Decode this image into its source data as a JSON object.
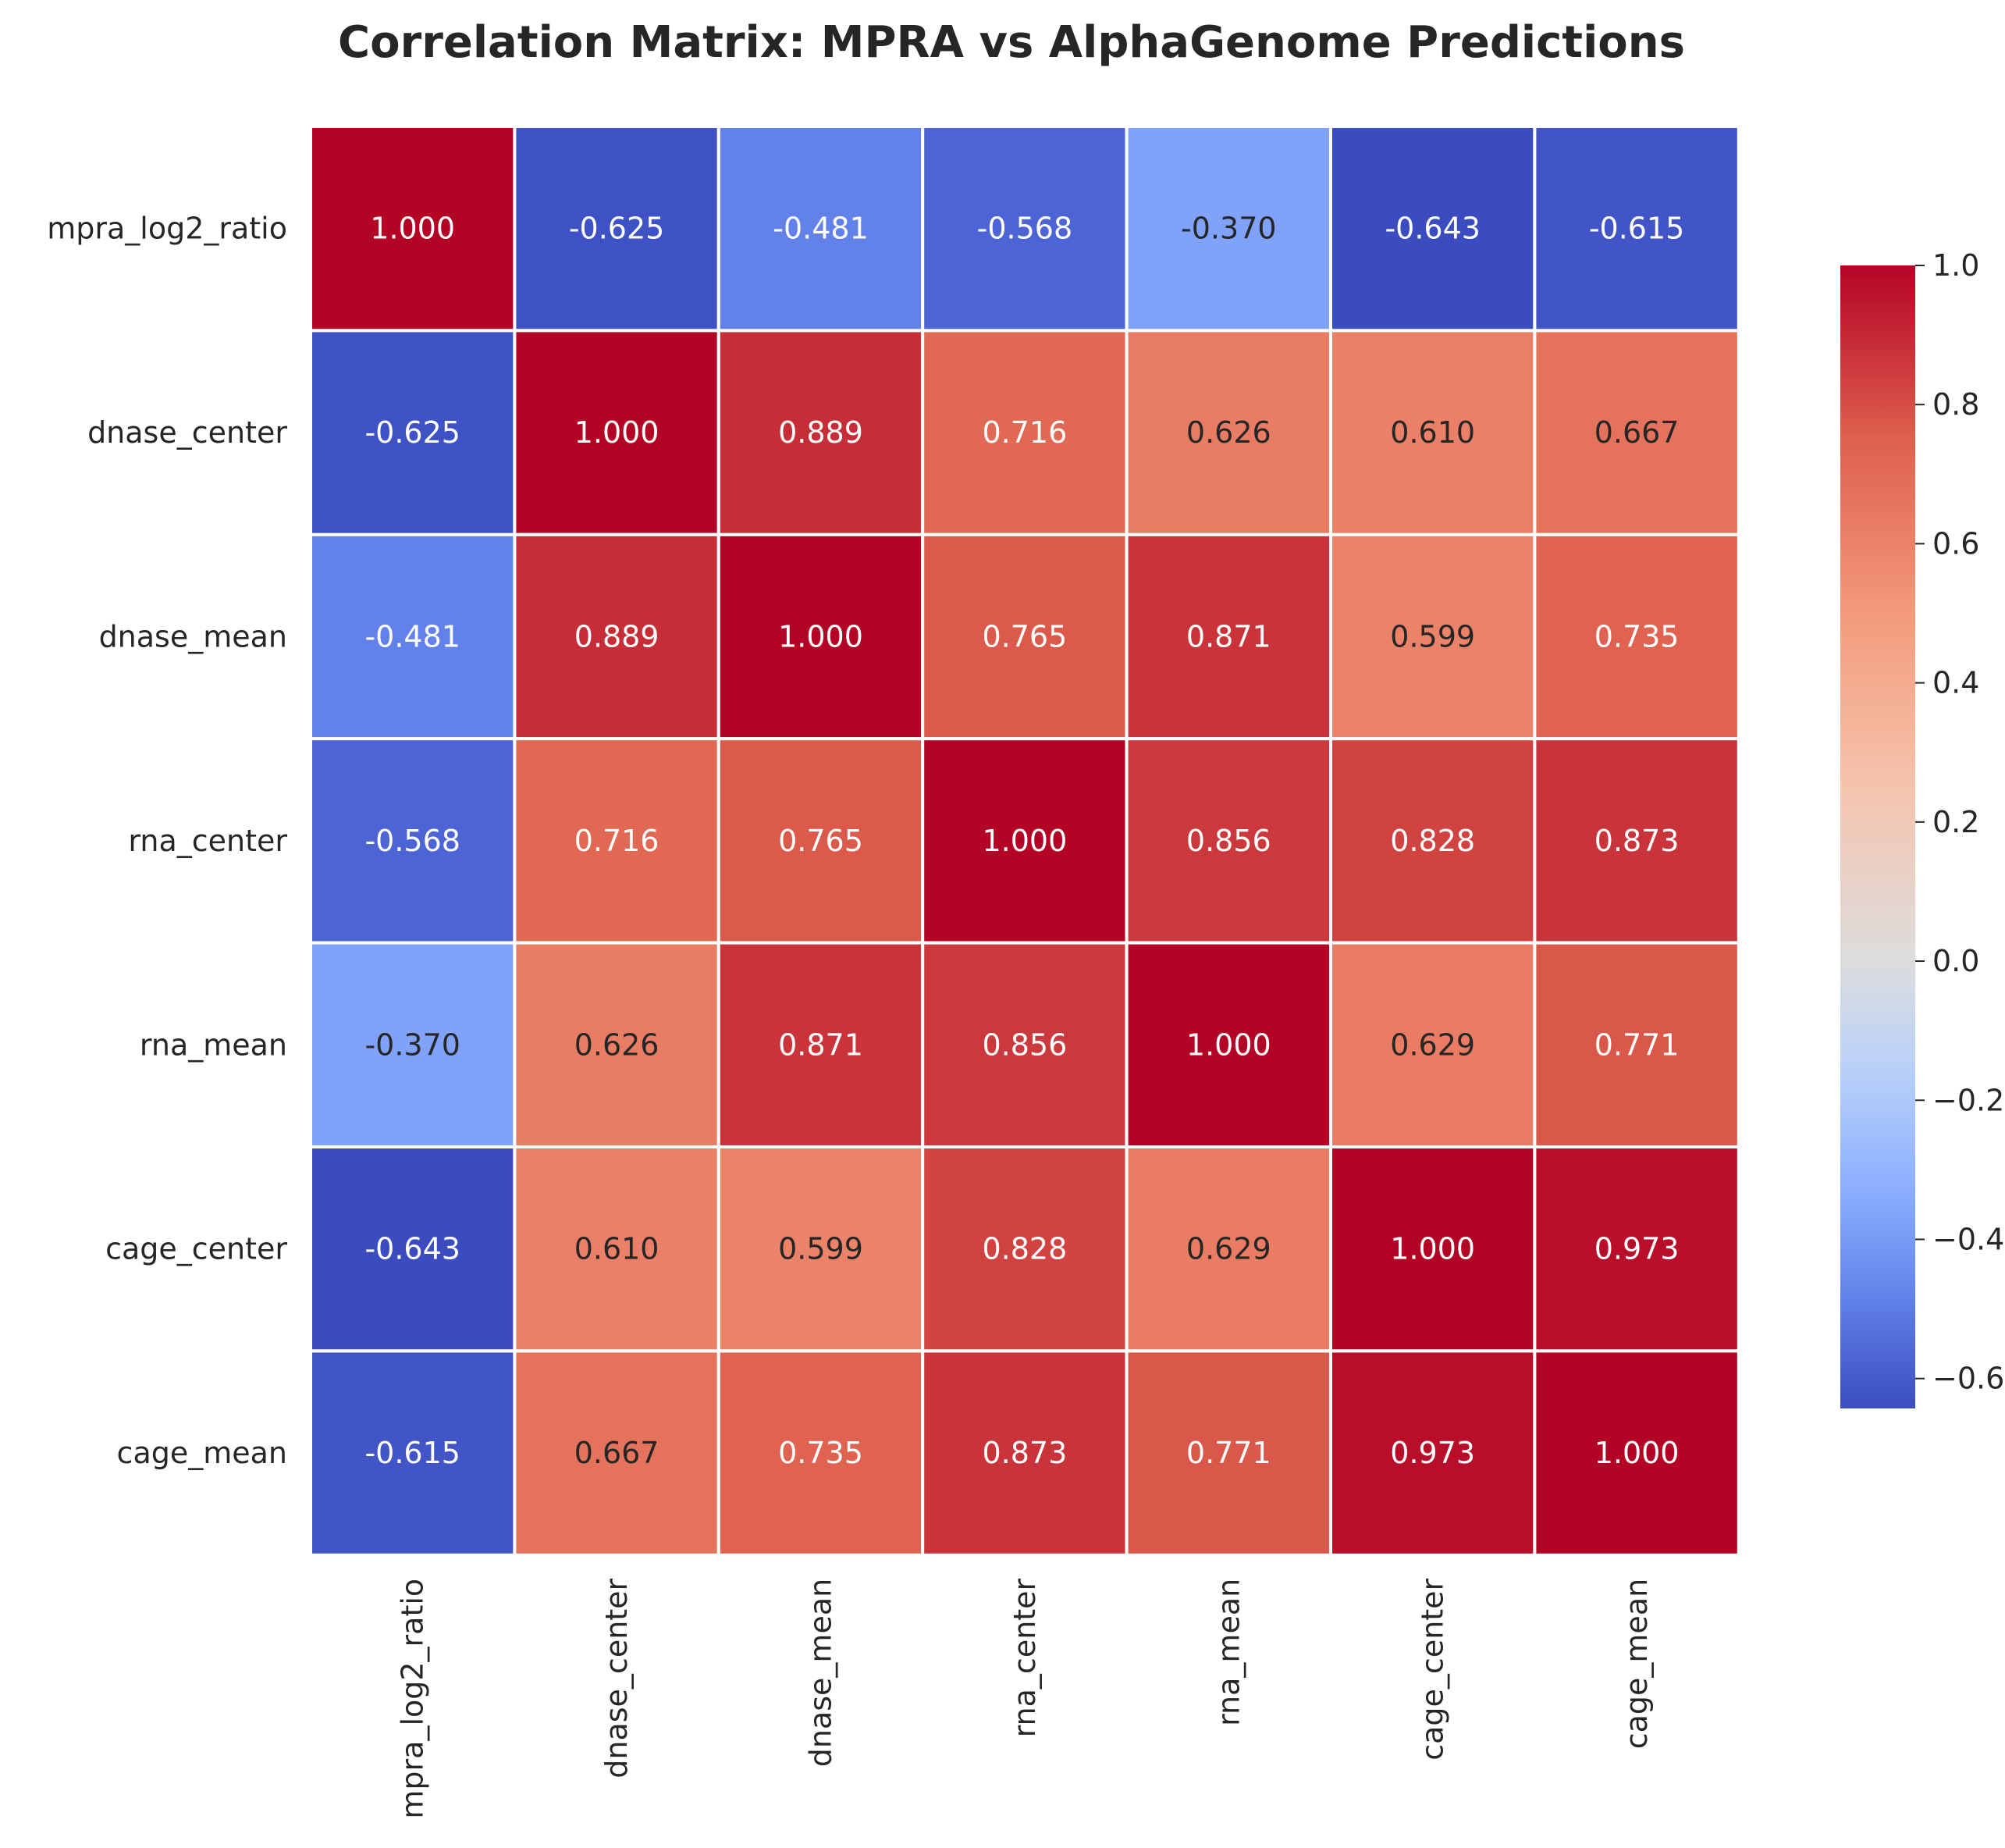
{
  "chart_data": {
    "type": "heatmap",
    "title": "Correlation Matrix: MPRA vs AlphaGenome Predictions",
    "rows": [
      "mpra_log2_ratio",
      "dnase_center",
      "dnase_mean",
      "rna_center",
      "rna_mean",
      "cage_center",
      "cage_mean"
    ],
    "columns": [
      "mpra_log2_ratio",
      "dnase_center",
      "dnase_mean",
      "rna_center",
      "rna_mean",
      "cage_center",
      "cage_mean"
    ],
    "values": [
      [
        1.0,
        -0.625,
        -0.481,
        -0.568,
        -0.37,
        -0.643,
        -0.615
      ],
      [
        -0.625,
        1.0,
        0.889,
        0.716,
        0.626,
        0.61,
        0.667
      ],
      [
        -0.481,
        0.889,
        1.0,
        0.765,
        0.871,
        0.599,
        0.735
      ],
      [
        -0.568,
        0.716,
        0.765,
        1.0,
        0.856,
        0.828,
        0.873
      ],
      [
        -0.37,
        0.626,
        0.871,
        0.856,
        1.0,
        0.629,
        0.771
      ],
      [
        -0.643,
        0.61,
        0.599,
        0.828,
        0.629,
        1.0,
        0.973
      ],
      [
        -0.615,
        0.667,
        0.735,
        0.873,
        0.771,
        0.973,
        1.0
      ]
    ],
    "value_format": "3 decimals",
    "colormap": "coolwarm",
    "colormap_center": 0.0,
    "colorbar": {
      "range": [
        -0.643,
        1.0
      ],
      "ticks": [
        1.0,
        0.8,
        0.6,
        0.4,
        0.2,
        0.0,
        -0.2,
        -0.4,
        -0.6
      ],
      "tick_labels": [
        "1.0",
        "0.8",
        "0.6",
        "0.4",
        "0.2",
        "0.0",
        "−0.2",
        "−0.4",
        "−0.6"
      ]
    },
    "cell_border_color": "#ffffff",
    "legend_placement": "right"
  }
}
